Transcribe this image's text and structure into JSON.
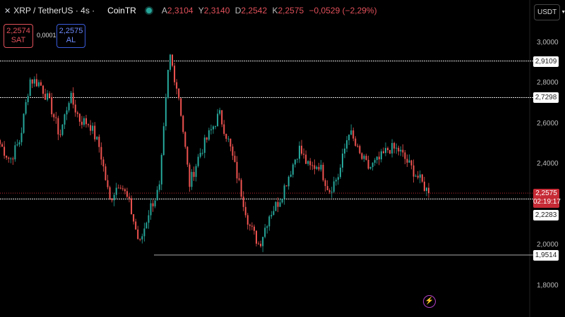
{
  "header": {
    "symbol": "XRP / TetherUS · 4s ·",
    "exchange": "CoinTR",
    "ohlc": [
      {
        "k": "A",
        "v": "2,3104"
      },
      {
        "k": "Y",
        "v": "2,3140"
      },
      {
        "k": "D",
        "v": "2,2542"
      },
      {
        "k": "K",
        "v": "2,2575"
      }
    ],
    "change": "−0,0529 (−2,29%)"
  },
  "trade": {
    "sell_price": "2,2574",
    "sell_label": "SAT",
    "spread": "0,0001",
    "buy_price": "2,2575",
    "buy_label": "AL"
  },
  "currency": "USDT",
  "axis": {
    "ticks": [
      "3,0000",
      "2,8000",
      "2,6000",
      "2,4000",
      "2,0000",
      "1,8000"
    ]
  },
  "levels": [
    "2,9109",
    "2,7298",
    "2,2283",
    "1,9514"
  ],
  "current": {
    "price": "2,2575",
    "countdown": "02:19:17"
  },
  "colors": {
    "up": "#26a69a",
    "down": "#ef5350",
    "current": "#c62a35"
  },
  "chart_data": {
    "type": "candlestick",
    "y_ticks": [
      3.0,
      2.8,
      2.6,
      2.4,
      2.0,
      1.8
    ],
    "levels": [
      2.9109,
      2.7298,
      2.2283,
      1.9514
    ],
    "last": 2.2575,
    "close_path": [
      2.5,
      2.42,
      2.52,
      2.82,
      2.8,
      2.7,
      2.54,
      2.74,
      2.62,
      2.6,
      2.48,
      2.22,
      2.32,
      2.2,
      2.0,
      2.18,
      2.28,
      2.95,
      2.72,
      2.3,
      2.45,
      2.55,
      2.65,
      2.5,
      2.3,
      2.1,
      2.0,
      2.15,
      2.22,
      2.35,
      2.48,
      2.38,
      2.4,
      2.27,
      2.35,
      2.57,
      2.45,
      2.38,
      2.42,
      2.48,
      2.47,
      2.4,
      2.33,
      2.2575
    ]
  }
}
